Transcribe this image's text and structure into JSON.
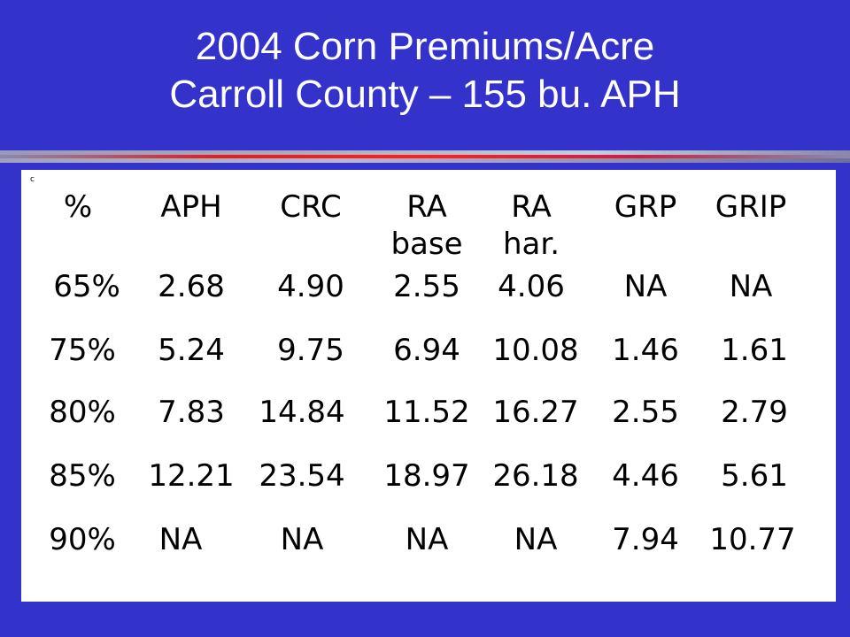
{
  "title": {
    "line1": "2004 Corn Premiums/Acre",
    "line2": "Carroll County – 155 bu. APH"
  },
  "table": {
    "marker": "c",
    "headers": [
      {
        "line1": "%",
        "line2": ""
      },
      {
        "line1": "APH",
        "line2": ""
      },
      {
        "line1": "CRC",
        "line2": ""
      },
      {
        "line1": "RA",
        "line2": "base"
      },
      {
        "line1": "RA",
        "line2": "har."
      },
      {
        "line1": "GRP",
        "line2": ""
      },
      {
        "line1": "GRIP",
        "line2": ""
      }
    ],
    "rows": [
      [
        "65%",
        "2.68",
        "4.90",
        "2.55",
        "4.06",
        "NA",
        "NA"
      ],
      [
        "75%",
        "5.24",
        "9.75",
        "6.94",
        "10.08",
        "1.46",
        "1.61"
      ],
      [
        "80%",
        "7.83",
        "14.84",
        "11.52",
        "16.27",
        "2.55",
        "2.79"
      ],
      [
        "85%",
        "12.21",
        "23.54",
        "18.97",
        "26.18",
        "4.46",
        "5.61"
      ],
      [
        "90%",
        "NA",
        "NA",
        "NA",
        "NA",
        "7.94",
        "10.77"
      ]
    ]
  }
}
